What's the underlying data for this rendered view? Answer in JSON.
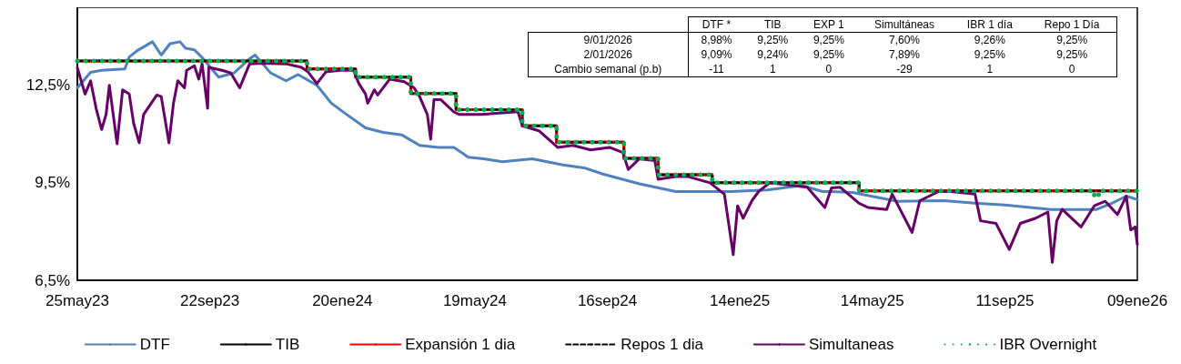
{
  "chart_data": {
    "type": "line",
    "xlim": [
      "2023-05-25",
      "2026-01-09"
    ],
    "xticks": [
      {
        "value": "2023-05-25",
        "label": "25may23"
      },
      {
        "value": "2023-09-22",
        "label": "22sep23"
      },
      {
        "value": "2024-01-20",
        "label": "20ene24"
      },
      {
        "value": "2024-05-19",
        "label": "19may24"
      },
      {
        "value": "2024-09-16",
        "label": "16sep24"
      },
      {
        "value": "2025-01-14",
        "label": "14ene25"
      },
      {
        "value": "2025-05-14",
        "label": "14may25"
      },
      {
        "value": "2025-09-11",
        "label": "11sep25"
      },
      {
        "value": "2026-01-09",
        "label": "09ene26"
      }
    ],
    "ylim": [
      6.5,
      14.9
    ],
    "yticks": [
      {
        "value": 6.5,
        "label": "6,5%"
      },
      {
        "value": 9.5,
        "label": "9,5%"
      },
      {
        "value": 12.5,
        "label": "12,5%"
      }
    ],
    "grid": false,
    "legend": "bottom",
    "series": [
      {
        "name": "DTF",
        "type": "line",
        "color": "#4f81bd",
        "x": [
          "2023-05-25",
          "2023-06-06",
          "2023-06-16",
          "2023-07-07",
          "2023-07-11",
          "2023-07-18",
          "2023-08-01",
          "2023-08-09",
          "2023-08-17",
          "2023-08-26",
          "2023-08-31",
          "2023-09-08",
          "2023-09-16",
          "2023-09-30",
          "2023-10-14",
          "2023-10-28",
          "2023-11-02",
          "2023-11-16",
          "2023-11-30",
          "2023-12-11",
          "2023-12-28",
          "2024-01-10",
          "2024-01-24",
          "2024-02-10",
          "2024-02-26",
          "2024-03-14",
          "2024-03-30",
          "2024-04-16",
          "2024-04-30",
          "2024-05-13",
          "2024-05-27",
          "2024-06-13",
          "2024-07-10",
          "2024-08-07",
          "2024-08-26",
          "2024-09-12",
          "2024-10-15",
          "2024-11-17",
          "2025-01-06",
          "2025-02-08",
          "2025-03-11",
          "2025-03-30",
          "2025-04-07",
          "2025-04-26",
          "2025-06-06",
          "2025-07-18",
          "2025-08-15",
          "2025-09-11",
          "2025-10-23",
          "2025-11-19",
          "2025-12-03",
          "2025-12-17",
          "2025-12-30",
          "2026-01-09"
        ],
        "values": [
          12.42,
          12.9,
          12.96,
          13.0,
          13.37,
          13.56,
          13.84,
          13.43,
          13.78,
          13.84,
          13.64,
          13.59,
          13.32,
          12.75,
          12.88,
          13.32,
          13.43,
          12.88,
          12.64,
          12.83,
          12.5,
          11.95,
          11.6,
          11.19,
          11.05,
          10.97,
          10.65,
          10.59,
          10.59,
          10.29,
          10.24,
          10.15,
          10.24,
          10.05,
          9.96,
          9.77,
          9.47,
          9.23,
          9.23,
          9.28,
          9.42,
          9.23,
          9.23,
          9.2,
          8.93,
          8.95,
          8.87,
          8.82,
          8.68,
          8.68,
          8.68,
          8.87,
          9.09,
          8.98
        ]
      },
      {
        "name": "TIB",
        "type": "step",
        "color": "#000000",
        "x": [
          "2023-05-25",
          "2023-12-19",
          "2024-02-01",
          "2024-03-22",
          "2024-05-02",
          "2024-07-01",
          "2024-08-01",
          "2024-10-01",
          "2024-11-01",
          "2024-12-20",
          "2025-05-02",
          "2026-01-09"
        ],
        "values": [
          13.25,
          13.0,
          12.75,
          12.25,
          11.75,
          11.25,
          10.75,
          10.25,
          9.75,
          9.5,
          9.25,
          9.24
        ]
      },
      {
        "name": "Expansión 1 dia",
        "type": "step",
        "color": "#ff0000",
        "x": [
          "2023-05-25",
          "2023-12-19",
          "2024-02-01",
          "2024-03-22",
          "2024-05-02",
          "2024-07-01",
          "2024-08-01",
          "2024-10-01",
          "2024-11-01",
          "2024-12-20",
          "2025-05-02",
          "2026-01-09"
        ],
        "values": [
          13.25,
          13.0,
          12.75,
          12.25,
          11.75,
          11.25,
          10.75,
          10.25,
          9.75,
          9.5,
          9.25,
          9.25
        ]
      },
      {
        "name": "Repos 1 dia",
        "type": "step",
        "color": "#000000",
        "line_style": "dashed",
        "x": [
          "2023-05-25",
          "2023-12-19",
          "2024-02-01",
          "2024-03-22",
          "2024-05-02",
          "2024-07-01",
          "2024-08-01",
          "2024-10-01",
          "2024-11-01",
          "2024-12-20",
          "2025-05-02",
          "2026-01-09"
        ],
        "values": [
          13.25,
          13.0,
          12.75,
          12.25,
          11.75,
          11.25,
          10.75,
          10.25,
          9.75,
          9.5,
          9.25,
          9.25
        ]
      },
      {
        "name": "Simultaneas",
        "type": "line",
        "color": "#660066",
        "x": [
          "2023-05-25",
          "2023-06-01",
          "2023-06-06",
          "2023-06-11",
          "2023-06-16",
          "2023-06-20",
          "2023-06-23",
          "2023-06-30",
          "2023-07-05",
          "2023-07-11",
          "2023-07-15",
          "2023-07-20",
          "2023-07-24",
          "2023-08-05",
          "2023-08-09",
          "2023-08-16",
          "2023-08-20",
          "2023-08-24",
          "2023-08-30",
          "2023-09-01",
          "2023-09-08",
          "2023-09-12",
          "2023-09-15",
          "2023-09-20",
          "2023-09-21",
          "2023-10-03",
          "2023-10-11",
          "2023-10-19",
          "2023-10-28",
          "2023-11-08",
          "2023-11-30",
          "2023-12-14",
          "2023-12-20",
          "2023-12-28",
          "2024-01-05",
          "2024-01-18",
          "2024-01-30",
          "2024-02-04",
          "2024-02-10",
          "2024-02-12",
          "2024-02-18",
          "2024-02-21",
          "2024-03-03",
          "2024-03-16",
          "2024-03-25",
          "2024-03-30",
          "2024-04-06",
          "2024-04-09",
          "2024-04-12",
          "2024-04-18",
          "2024-04-30",
          "2024-05-05",
          "2024-05-25",
          "2024-06-27",
          "2024-07-01",
          "2024-07-16",
          "2024-08-02",
          "2024-08-16",
          "2024-09-01",
          "2024-09-18",
          "2024-09-30",
          "2024-10-05",
          "2024-10-15",
          "2024-10-29",
          "2024-11-01",
          "2024-11-17",
          "2024-11-28",
          "2024-12-18",
          "2024-12-31",
          "2025-01-08",
          "2025-01-12",
          "2025-01-17",
          "2025-01-25",
          "2025-01-31",
          "2025-02-10",
          "2025-03-16",
          "2025-04-01",
          "2025-04-07",
          "2025-04-15",
          "2025-05-02",
          "2025-05-10",
          "2025-05-27",
          "2025-06-01",
          "2025-06-19",
          "2025-06-26",
          "2025-07-13",
          "2025-07-24",
          "2025-08-15",
          "2025-08-20",
          "2025-09-03",
          "2025-09-15",
          "2025-09-25",
          "2025-10-09",
          "2025-10-20",
          "2025-10-24",
          "2025-10-28",
          "2025-11-02",
          "2025-11-19",
          "2025-12-01",
          "2025-12-11",
          "2025-12-22",
          "2025-12-30",
          "2026-01-03",
          "2026-01-07",
          "2026-01-09"
        ],
        "values": [
          13.04,
          12.23,
          12.64,
          11.79,
          11.14,
          11.6,
          12.5,
          10.7,
          12.36,
          12.23,
          11.33,
          10.73,
          11.6,
          12.2,
          12.15,
          10.73,
          11.93,
          12.64,
          12.42,
          12.96,
          13.1,
          12.69,
          13.16,
          11.79,
          13.05,
          12.96,
          12.88,
          12.42,
          13.16,
          13.18,
          13.16,
          13.05,
          12.91,
          12.55,
          12.91,
          12.96,
          12.96,
          12.55,
          12.23,
          11.95,
          12.36,
          12.2,
          12.69,
          12.61,
          12.42,
          12.15,
          11.6,
          10.84,
          12.06,
          12.06,
          11.68,
          11.6,
          11.6,
          11.69,
          11.25,
          11.1,
          10.59,
          10.65,
          10.51,
          10.59,
          10.43,
          9.91,
          10.24,
          10.18,
          9.61,
          9.69,
          9.69,
          9.5,
          9.15,
          7.29,
          8.79,
          8.41,
          8.95,
          9.23,
          9.5,
          9.36,
          8.74,
          9.34,
          9.36,
          8.87,
          8.74,
          8.68,
          9.15,
          7.97,
          8.95,
          9.23,
          9.23,
          9.15,
          8.33,
          8.25,
          7.45,
          8.25,
          8.41,
          8.6,
          7.05,
          8.33,
          8.68,
          8.14,
          8.79,
          8.93,
          8.52,
          9.09,
          8.05,
          8.14,
          7.6
        ]
      },
      {
        "name": "IBR Overnight",
        "type": "step",
        "color": "#00b050",
        "line_style": "dotted",
        "x": [
          "2023-05-25",
          "2023-12-19",
          "2024-02-01",
          "2024-03-22",
          "2024-05-02",
          "2024-07-01",
          "2024-08-01",
          "2024-10-01",
          "2024-11-01",
          "2024-12-20",
          "2025-05-02",
          "2025-12-01",
          "2025-12-05",
          "2026-01-09"
        ],
        "values": [
          13.25,
          13.0,
          12.75,
          12.25,
          11.75,
          11.25,
          10.75,
          10.25,
          9.75,
          9.5,
          9.25,
          9.07,
          9.25,
          9.26
        ]
      }
    ],
    "annotations": [
      "DTF *",
      "TIB",
      "EXP 1",
      "Simultáneas",
      "IBR 1 día",
      "Repo 1 Día",
      "9/01/2026",
      "8,98%",
      "9,25%",
      "9,25%",
      "7,60%",
      "9,26%",
      "9,25%",
      "2/01/2026",
      "9,09%",
      "9,24%",
      "9,25%",
      "7,89%",
      "9,25%",
      "9,25%",
      "Cambio semanal (p.b)",
      "-11",
      "1",
      "0",
      "-29",
      "1",
      "0"
    ]
  }
}
